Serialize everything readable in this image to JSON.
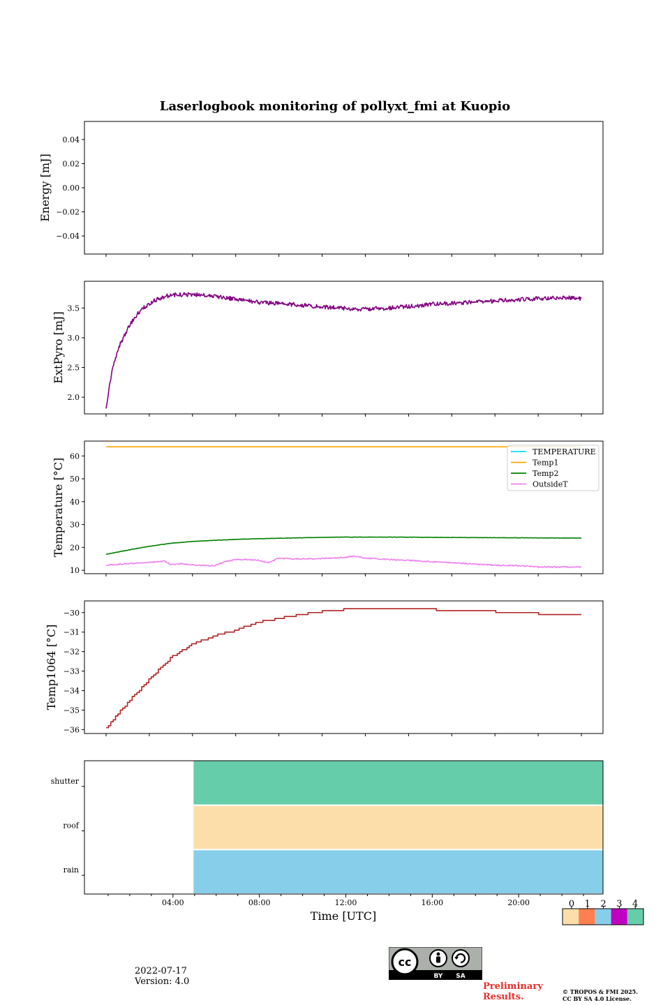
{
  "colors": {
    "extpyro": "#800080",
    "temperature": "#00e5ee",
    "temp1": "#ffa500",
    "temp2": "#008000",
    "outsidet": "#ee82ee",
    "temp1064": "#b22222",
    "status_0": "#fcdeaa",
    "status_1": "#ff7f50",
    "status_2": "#87ceeb",
    "status_3": "#c000c0",
    "status_4": "#66cdaa"
  },
  "chart_data": [
    {
      "id": "energy",
      "type": "line",
      "title": "Laserlogbook monitoring of pollyxt_fmi at Kuopio",
      "ylabel": "Energy [mJ]",
      "ylim": [
        -0.055,
        0.055
      ],
      "yticks": [
        0.04,
        0.02,
        0.0,
        -0.02,
        -0.04
      ],
      "ytick_labels": [
        "0.04",
        "0.02",
        "0.00",
        "−0.02",
        "−0.04"
      ],
      "series": []
    },
    {
      "id": "extpyro",
      "type": "line",
      "ylabel": "ExtPyro [mJ]",
      "ylim": [
        1.72,
        3.95
      ],
      "yticks": [
        3.5,
        3.0,
        2.5,
        2.0
      ],
      "ytick_labels": [
        "3.5",
        "3.0",
        "2.5",
        "2.0"
      ],
      "series": [
        {
          "name": "ExtPyro",
          "color_key": "extpyro",
          "x": [
            1.0,
            1.1,
            1.3,
            1.6,
            2.0,
            2.4,
            2.8,
            3.2,
            3.6,
            4.0,
            5.0,
            6.0,
            7.0,
            8.0,
            9.0,
            10.0,
            11.0,
            12.0,
            12.5,
            13.0,
            14.0,
            15.0,
            16.0,
            17.0,
            18.0,
            19.0,
            20.0,
            21.0,
            22.0,
            23.0
          ],
          "y": [
            1.84,
            2.05,
            2.5,
            2.85,
            3.15,
            3.38,
            3.52,
            3.62,
            3.68,
            3.72,
            3.73,
            3.7,
            3.65,
            3.6,
            3.58,
            3.55,
            3.52,
            3.5,
            3.47,
            3.48,
            3.5,
            3.53,
            3.56,
            3.58,
            3.6,
            3.62,
            3.64,
            3.66,
            3.68,
            3.66
          ],
          "noise": 0.035
        }
      ]
    },
    {
      "id": "temperature",
      "type": "line",
      "ylabel": "Temperature [°C]",
      "ylim": [
        8.5,
        66.5
      ],
      "yticks": [
        60,
        50,
        40,
        30,
        20,
        10
      ],
      "ytick_labels": [
        "60",
        "50",
        "40",
        "30",
        "20",
        "10"
      ],
      "legend_position": "top-right",
      "series": [
        {
          "name": "TEMPERATURE",
          "color_key": "temperature",
          "x": [],
          "y": []
        },
        {
          "name": "Temp1",
          "color_key": "temp1",
          "x": [
            1.0,
            23.0
          ],
          "y": [
            64,
            64
          ],
          "noise": 0
        },
        {
          "name": "Temp2",
          "color_key": "temp2",
          "x": [
            1.0,
            2.0,
            3.0,
            4.0,
            5.0,
            6.0,
            7.0,
            8.0,
            9.0,
            10.0,
            12.0,
            14.0,
            16.0,
            18.0,
            20.0,
            22.0,
            23.0
          ],
          "y": [
            17.0,
            18.8,
            20.5,
            21.8,
            22.6,
            23.1,
            23.5,
            23.8,
            24.0,
            24.2,
            24.5,
            24.5,
            24.4,
            24.3,
            24.2,
            24.1,
            24.1
          ],
          "noise": 0.08
        },
        {
          "name": "OutsideT",
          "color_key": "outsidet",
          "x": [
            1.0,
            2.0,
            3.0,
            3.7,
            4.0,
            4.5,
            5.0,
            6.0,
            6.5,
            7.0,
            8.0,
            8.5,
            9.0,
            10.0,
            11.0,
            12.0,
            12.5,
            13.0,
            14.0,
            16.0,
            18.0,
            19.0,
            20.0,
            21.0,
            22.0,
            23.0
          ],
          "y": [
            12.2,
            12.9,
            13.4,
            14.0,
            12.5,
            12.8,
            12.3,
            11.9,
            13.8,
            14.8,
            14.5,
            13.4,
            15.2,
            14.9,
            15.1,
            15.6,
            16.2,
            15.3,
            14.8,
            13.8,
            12.8,
            12.2,
            12.0,
            11.5,
            11.4,
            11.4
          ],
          "noise": 0.25
        }
      ]
    },
    {
      "id": "temp1064",
      "type": "line",
      "ylabel": "Temp1064 [°C]",
      "ylim": [
        -36.2,
        -29.4
      ],
      "yticks": [
        -30,
        -31,
        -32,
        -33,
        -34,
        -35,
        -36
      ],
      "ytick_labels": [
        "−30",
        "−31",
        "−32",
        "−33",
        "−34",
        "−35",
        "−36"
      ],
      "step": 0.1,
      "series": [
        {
          "name": "Temp1064",
          "color_key": "temp1064",
          "x": [
            1.0,
            2.0,
            3.0,
            4.0,
            5.0,
            6.0,
            7.0,
            8.0,
            9.0,
            10.0,
            11.0,
            12.0,
            13.0,
            14.0,
            15.0,
            16.0,
            17.0,
            18.0,
            19.0,
            20.0,
            21.0,
            22.0,
            23.0
          ],
          "y": [
            -35.9,
            -34.6,
            -33.4,
            -32.3,
            -31.6,
            -31.2,
            -30.9,
            -30.5,
            -30.3,
            -30.1,
            -29.95,
            -29.85,
            -29.8,
            -29.78,
            -29.8,
            -29.83,
            -29.9,
            -29.92,
            -29.95,
            -30.0,
            -30.05,
            -30.1,
            -30.1
          ]
        }
      ]
    },
    {
      "id": "status",
      "type": "heatmap",
      "categories": [
        "shutter",
        "roof",
        "rain"
      ],
      "xlim": [
        0,
        24
      ],
      "data_start": 5.05,
      "data_end": 24,
      "values": {
        "shutter": 4,
        "roof": 0,
        "rain": 2
      },
      "xticks": [
        4,
        8,
        12,
        16,
        20
      ],
      "xtick_labels": [
        "04:00",
        "08:00",
        "12:00",
        "16:00",
        "20:00"
      ],
      "xlabel": "Time [UTC]",
      "colorbar": {
        "ticks": [
          "0",
          "1",
          "2",
          "3",
          "4"
        ]
      }
    }
  ],
  "footer": {
    "date": "2022-07-17",
    "version": "Version: 4.0",
    "preliminary_line1": "Preliminary",
    "preliminary_line2": "Results.",
    "copyright_line1": "© TROPOS & FMI 2025.",
    "copyright_line2": "CC BY SA 4.0 License.",
    "license_by": "BY",
    "license_sa": "SA"
  }
}
